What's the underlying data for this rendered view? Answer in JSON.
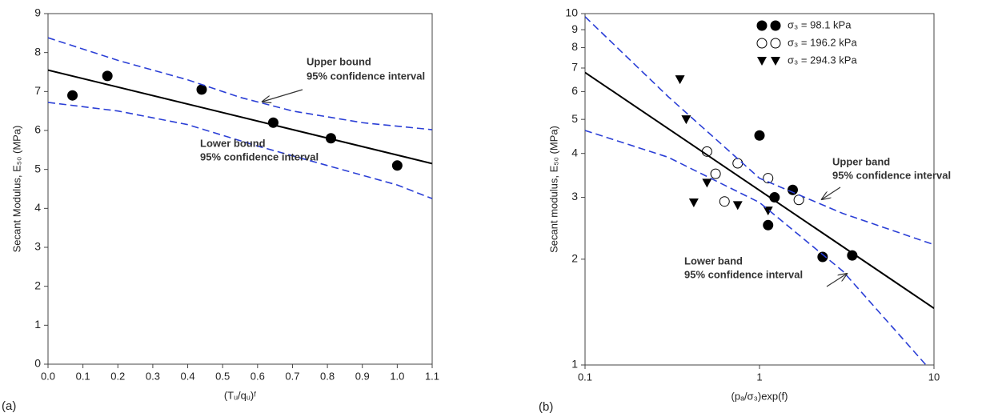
{
  "chart_data": [
    {
      "type": "scatter",
      "panel_label": "(a)",
      "x_label": "(Tᵤ/qᵤ)ᶠ",
      "y_label": "Secant Modulus, E₅₀ (MPa)",
      "xlim": [
        0,
        1.1
      ],
      "ylim": [
        0,
        9
      ],
      "xticks": [
        {
          "value": 0,
          "label": "0.0"
        },
        0.1,
        0.2,
        0.3,
        0.4,
        0.5,
        0.6,
        0.7,
        0.8,
        0.9,
        {
          "value": 1,
          "label": "1.0"
        },
        1.1
      ],
      "yticks": [
        0,
        1,
        2,
        3,
        4,
        5,
        6,
        7,
        8,
        9
      ],
      "series": [
        {
          "marker": "filled-circle",
          "color": "#000000",
          "x": [
            0.07,
            0.17,
            0.44,
            0.645,
            0.81,
            1.0
          ],
          "values": [
            6.9,
            7.4,
            7.05,
            6.2,
            5.8,
            5.1
          ]
        },
        {
          "line": "solid",
          "color": "#000000",
          "x": [
            0,
            1.1
          ],
          "values": [
            7.55,
            5.15
          ]
        },
        {
          "line": "dashed",
          "color": "#2b3fd6",
          "x": [
            0,
            0.2,
            0.4,
            0.55,
            0.7,
            0.9,
            1.1
          ],
          "values": [
            8.38,
            7.8,
            7.3,
            6.85,
            6.5,
            6.2,
            6.02
          ]
        },
        {
          "line": "dashed",
          "color": "#2b3fd6",
          "x": [
            0,
            0.2,
            0.4,
            0.6,
            0.8,
            1.0,
            1.1
          ],
          "values": [
            6.72,
            6.5,
            6.15,
            5.6,
            5.1,
            4.6,
            4.25
          ]
        }
      ],
      "annotations": [
        "Upper bound",
        "95% confidence interval",
        "Lower bound",
        "95% confidence interval"
      ]
    },
    {
      "type": "scatter",
      "panel_label": "(b)",
      "x_label": "(pₐ/σ₃)exp(f)",
      "y_label": "Secant modulus, E₅₀ (MPa)",
      "xscale": "log",
      "yscale": "log",
      "xlim": [
        0.1,
        10
      ],
      "ylim": [
        1,
        10
      ],
      "xticks": [
        0.1,
        1,
        10
      ],
      "yticks": [
        1,
        2,
        3,
        4,
        5,
        6,
        7,
        8,
        9,
        10
      ],
      "legend": "upper right",
      "series": [
        {
          "name": "σ₃ = 98.1 kPa",
          "marker": "filled-circle",
          "color": "#000000",
          "x": [
            1.0,
            1.12,
            1.22,
            1.55,
            2.3,
            3.4
          ],
          "values": [
            4.5,
            2.5,
            3.0,
            3.15,
            2.03,
            2.05
          ]
        },
        {
          "name": "σ₃ = 196.2 kPa",
          "marker": "open-circle",
          "color": "#000000",
          "x": [
            0.5,
            0.56,
            0.63,
            0.75,
            1.12,
            1.68
          ],
          "values": [
            4.05,
            3.5,
            2.92,
            3.75,
            3.4,
            2.95
          ]
        },
        {
          "name": "σ₃ = 294.3 kPa",
          "marker": "filled-triangle",
          "color": "#000000",
          "x": [
            0.35,
            0.38,
            0.42,
            0.5,
            0.75,
            1.12
          ],
          "values": [
            6.5,
            5.0,
            2.9,
            3.3,
            2.85,
            2.75
          ]
        },
        {
          "line": "solid",
          "color": "#000000",
          "x": [
            0.1,
            10
          ],
          "values": [
            6.8,
            1.45
          ]
        },
        {
          "line": "dashed",
          "color": "#2b3fd6",
          "x": [
            0.1,
            0.3,
            1,
            3,
            10
          ],
          "values": [
            9.8,
            5.8,
            3.4,
            2.7,
            2.2
          ]
        },
        {
          "line": "dashed",
          "color": "#2b3fd6",
          "x": [
            0.1,
            0.3,
            1,
            3,
            9
          ],
          "values": [
            4.65,
            3.9,
            2.9,
            1.85,
            1.0
          ]
        }
      ],
      "annotations": [
        "Upper band",
        "95% confidence interval",
        "Lower band",
        "95% confidence interval"
      ]
    }
  ]
}
